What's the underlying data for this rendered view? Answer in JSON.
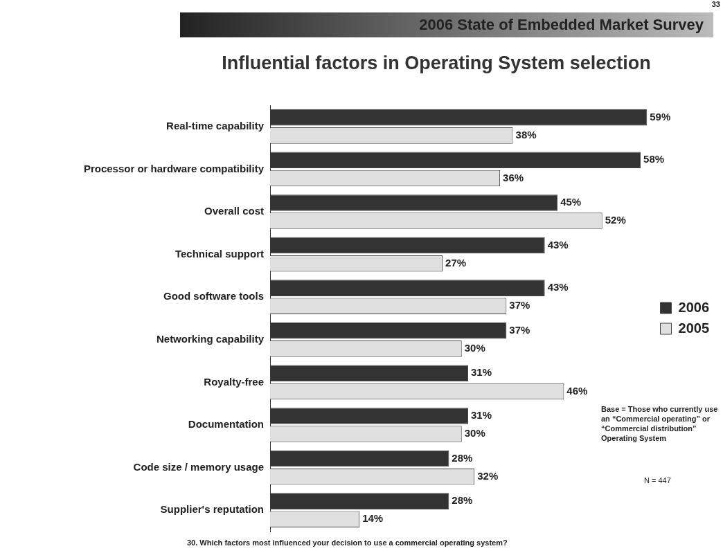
{
  "chart_data": {
    "type": "bar",
    "orientation": "horizontal",
    "title": "Influential factors in Operating System selection",
    "subtitle": "2006 State of Embedded Market Survey",
    "categories": [
      "Real-time capability",
      "Processor or hardware compatibility",
      "Overall cost",
      "Technical support",
      "Good software tools",
      "Networking capability",
      "Royalty-free",
      "Documentation",
      "Code size / memory usage",
      "Supplier's reputation"
    ],
    "series": [
      {
        "name": "2006",
        "color": "#333333",
        "values": [
          59,
          58,
          45,
          43,
          43,
          37,
          31,
          31,
          28,
          28
        ],
        "value_labels": [
          "59%",
          "58%",
          "45%",
          "43%",
          "43%",
          "37%",
          "31%",
          "31%",
          "28%",
          "28%"
        ]
      },
      {
        "name": "2005",
        "color": "#e0e0e0",
        "values": [
          38,
          36,
          52,
          27,
          37,
          30,
          46,
          30,
          32,
          14
        ],
        "value_labels": [
          "38%",
          "36%",
          "52%",
          "27%",
          "37%",
          "30%",
          "46%",
          "30%",
          "32%",
          "14%"
        ]
      }
    ],
    "tick_labels": "y",
    "grid": false,
    "legend": "right",
    "annotations": [
      "33",
      "Base = Those who currently use an “Commercial operating” or “Commercial distribution” Operating System",
      "N = 447",
      "30. Which factors most influenced your decision to use a commercial operating system?"
    ]
  }
}
